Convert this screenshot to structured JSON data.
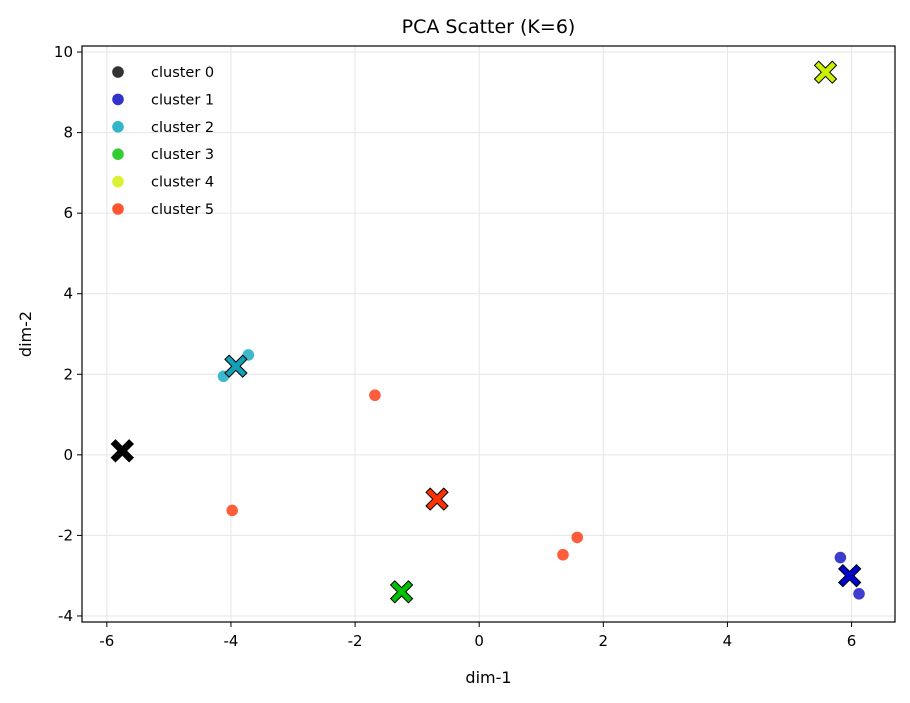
{
  "chart_data": {
    "type": "scatter",
    "title": "PCA Scatter (K=6)",
    "xlabel": "dim-1",
    "ylabel": "dim-2",
    "xlim": [
      -6.4,
      6.7
    ],
    "ylim": [
      -4.15,
      10.15
    ],
    "xticks": [
      -6,
      -4,
      -2,
      0,
      2,
      4,
      6
    ],
    "yticks": [
      -4,
      -2,
      0,
      2,
      4,
      6,
      8,
      10
    ],
    "grid": true,
    "legend_position": "top-left",
    "series": [
      {
        "name": "cluster 0",
        "color": "#333333",
        "centroid_color": "#000000",
        "points": [],
        "centroid": [
          -5.75,
          0.1
        ]
      },
      {
        "name": "cluster 1",
        "color": "#3333cc",
        "centroid_color": "#0000cc",
        "points": [
          [
            5.82,
            -2.55
          ],
          [
            6.12,
            -3.45
          ]
        ],
        "centroid": [
          5.97,
          -3.0
        ]
      },
      {
        "name": "cluster 2",
        "color": "#33b5c8",
        "centroid_color": "#13a0b5",
        "points": [
          [
            -4.12,
            1.95
          ],
          [
            -3.72,
            2.48
          ]
        ],
        "centroid": [
          -3.92,
          2.2
        ]
      },
      {
        "name": "cluster 3",
        "color": "#33cc33",
        "centroid_color": "#00c000",
        "points": [],
        "centroid": [
          -1.25,
          -3.4
        ]
      },
      {
        "name": "cluster 4",
        "color": "#d8f233",
        "centroid_color": "#c8f000",
        "points": [],
        "centroid": [
          5.58,
          9.5
        ]
      },
      {
        "name": "cluster 5",
        "color": "#ff5533",
        "centroid_color": "#ff3300",
        "points": [
          [
            -1.68,
            1.48
          ],
          [
            -3.98,
            -1.38
          ],
          [
            1.35,
            -2.48
          ],
          [
            1.58,
            -2.05
          ]
        ],
        "centroid": [
          -0.68,
          -1.1
        ]
      }
    ]
  }
}
